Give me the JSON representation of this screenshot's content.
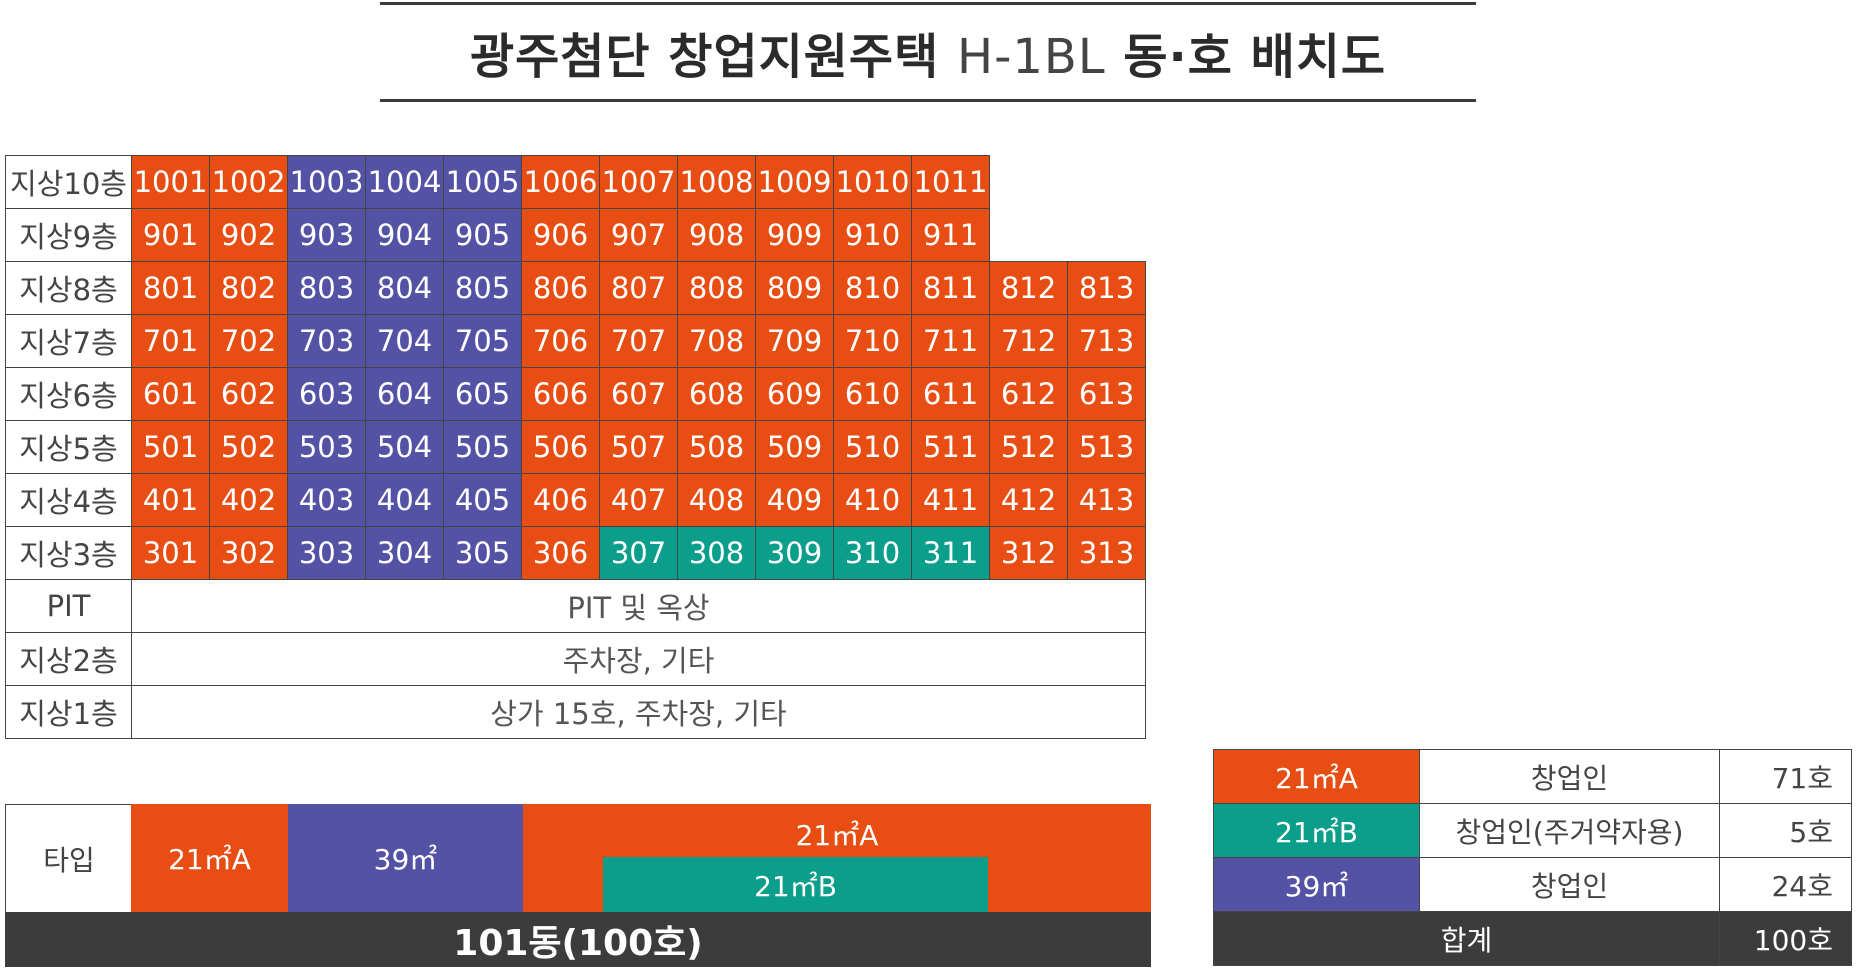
{
  "title": {
    "main": "광주첨단 창업지원주택",
    "block": "H-1BL",
    "suffix": "동·호 배치도"
  },
  "colors": {
    "orange": "#e84e13",
    "purple": "#5452a5",
    "teal": "#0b9e8a",
    "dark": "#3c3c3c"
  },
  "grid": {
    "floors": [
      {
        "label": "지상10층",
        "units": [
          {
            "no": "1001",
            "t": "A"
          },
          {
            "no": "1002",
            "t": "A"
          },
          {
            "no": "1003",
            "t": "P"
          },
          {
            "no": "1004",
            "t": "P"
          },
          {
            "no": "1005",
            "t": "P"
          },
          {
            "no": "1006",
            "t": "A"
          },
          {
            "no": "1007",
            "t": "A"
          },
          {
            "no": "1008",
            "t": "A"
          },
          {
            "no": "1009",
            "t": "A"
          },
          {
            "no": "1010",
            "t": "A"
          },
          {
            "no": "1011",
            "t": "A"
          }
        ]
      },
      {
        "label": "지상9층",
        "units": [
          {
            "no": "901",
            "t": "A"
          },
          {
            "no": "902",
            "t": "A"
          },
          {
            "no": "903",
            "t": "P"
          },
          {
            "no": "904",
            "t": "P"
          },
          {
            "no": "905",
            "t": "P"
          },
          {
            "no": "906",
            "t": "A"
          },
          {
            "no": "907",
            "t": "A"
          },
          {
            "no": "908",
            "t": "A"
          },
          {
            "no": "909",
            "t": "A"
          },
          {
            "no": "910",
            "t": "A"
          },
          {
            "no": "911",
            "t": "A"
          }
        ]
      },
      {
        "label": "지상8층",
        "units": [
          {
            "no": "801",
            "t": "A"
          },
          {
            "no": "802",
            "t": "A"
          },
          {
            "no": "803",
            "t": "P"
          },
          {
            "no": "804",
            "t": "P"
          },
          {
            "no": "805",
            "t": "P"
          },
          {
            "no": "806",
            "t": "A"
          },
          {
            "no": "807",
            "t": "A"
          },
          {
            "no": "808",
            "t": "A"
          },
          {
            "no": "809",
            "t": "A"
          },
          {
            "no": "810",
            "t": "A"
          },
          {
            "no": "811",
            "t": "A"
          },
          {
            "no": "812",
            "t": "A"
          },
          {
            "no": "813",
            "t": "A"
          }
        ]
      },
      {
        "label": "지상7층",
        "units": [
          {
            "no": "701",
            "t": "A"
          },
          {
            "no": "702",
            "t": "A"
          },
          {
            "no": "703",
            "t": "P"
          },
          {
            "no": "704",
            "t": "P"
          },
          {
            "no": "705",
            "t": "P"
          },
          {
            "no": "706",
            "t": "A"
          },
          {
            "no": "707",
            "t": "A"
          },
          {
            "no": "708",
            "t": "A"
          },
          {
            "no": "709",
            "t": "A"
          },
          {
            "no": "710",
            "t": "A"
          },
          {
            "no": "711",
            "t": "A"
          },
          {
            "no": "712",
            "t": "A"
          },
          {
            "no": "713",
            "t": "A"
          }
        ]
      },
      {
        "label": "지상6층",
        "units": [
          {
            "no": "601",
            "t": "A"
          },
          {
            "no": "602",
            "t": "A"
          },
          {
            "no": "603",
            "t": "P"
          },
          {
            "no": "604",
            "t": "P"
          },
          {
            "no": "605",
            "t": "P"
          },
          {
            "no": "606",
            "t": "A"
          },
          {
            "no": "607",
            "t": "A"
          },
          {
            "no": "608",
            "t": "A"
          },
          {
            "no": "609",
            "t": "A"
          },
          {
            "no": "610",
            "t": "A"
          },
          {
            "no": "611",
            "t": "A"
          },
          {
            "no": "612",
            "t": "A"
          },
          {
            "no": "613",
            "t": "A"
          }
        ]
      },
      {
        "label": "지상5층",
        "units": [
          {
            "no": "501",
            "t": "A"
          },
          {
            "no": "502",
            "t": "A"
          },
          {
            "no": "503",
            "t": "P"
          },
          {
            "no": "504",
            "t": "P"
          },
          {
            "no": "505",
            "t": "P"
          },
          {
            "no": "506",
            "t": "A"
          },
          {
            "no": "507",
            "t": "A"
          },
          {
            "no": "508",
            "t": "A"
          },
          {
            "no": "509",
            "t": "A"
          },
          {
            "no": "510",
            "t": "A"
          },
          {
            "no": "511",
            "t": "A"
          },
          {
            "no": "512",
            "t": "A"
          },
          {
            "no": "513",
            "t": "A"
          }
        ]
      },
      {
        "label": "지상4층",
        "units": [
          {
            "no": "401",
            "t": "A"
          },
          {
            "no": "402",
            "t": "A"
          },
          {
            "no": "403",
            "t": "P"
          },
          {
            "no": "404",
            "t": "P"
          },
          {
            "no": "405",
            "t": "P"
          },
          {
            "no": "406",
            "t": "A"
          },
          {
            "no": "407",
            "t": "A"
          },
          {
            "no": "408",
            "t": "A"
          },
          {
            "no": "409",
            "t": "A"
          },
          {
            "no": "410",
            "t": "A"
          },
          {
            "no": "411",
            "t": "A"
          },
          {
            "no": "412",
            "t": "A"
          },
          {
            "no": "413",
            "t": "A"
          }
        ]
      },
      {
        "label": "지상3층",
        "units": [
          {
            "no": "301",
            "t": "A"
          },
          {
            "no": "302",
            "t": "A"
          },
          {
            "no": "303",
            "t": "P"
          },
          {
            "no": "304",
            "t": "P"
          },
          {
            "no": "305",
            "t": "P"
          },
          {
            "no": "306",
            "t": "A"
          },
          {
            "no": "307",
            "t": "B"
          },
          {
            "no": "308",
            "t": "B"
          },
          {
            "no": "309",
            "t": "B"
          },
          {
            "no": "310",
            "t": "B"
          },
          {
            "no": "311",
            "t": "B"
          },
          {
            "no": "312",
            "t": "A"
          },
          {
            "no": "313",
            "t": "A"
          }
        ]
      }
    ],
    "lower": [
      {
        "label": "PIT",
        "text": "PIT 및 옥상"
      },
      {
        "label": "지상2층",
        "text": "주차장, 기타"
      },
      {
        "label": "지상1층",
        "text": "상가 15호, 주차장, 기타"
      }
    ]
  },
  "type_row": {
    "label": "타입",
    "a1": "21㎡A",
    "p": "39㎡",
    "a2": "21㎡A",
    "b": "21㎡B"
  },
  "building": "101동(100호)",
  "legend": {
    "rows": [
      {
        "type": "21㎡A",
        "desc": "창업인",
        "count": "71호",
        "color": "orange"
      },
      {
        "type": "21㎡B",
        "desc": "창업인(주거약자용)",
        "count": "5호",
        "color": "teal"
      },
      {
        "type": "39㎡",
        "desc": "창업인",
        "count": "24호",
        "color": "purple"
      }
    ],
    "total_label": "합계",
    "total_count": "100호"
  }
}
